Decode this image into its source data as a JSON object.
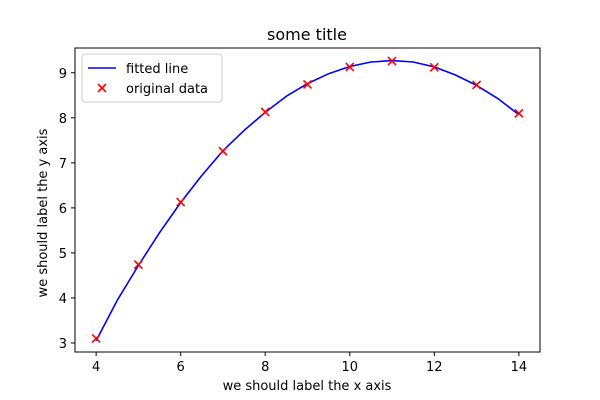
{
  "chart_data": {
    "type": "line",
    "title": "some title",
    "xlabel": "we should label the x axis",
    "ylabel": "we should label the y axis",
    "xlim": [
      3.5,
      14.5
    ],
    "ylim": [
      2.8,
      9.55
    ],
    "x_ticks": [
      4,
      6,
      8,
      10,
      12,
      14
    ],
    "y_ticks": [
      3,
      4,
      5,
      6,
      7,
      8,
      9
    ],
    "grid": false,
    "legend_position": "top-left",
    "series": [
      {
        "name": "fitted line",
        "kind": "line",
        "color": "#0000ff",
        "x": [
          4,
          4.5,
          5,
          5.5,
          6,
          6.5,
          7,
          7.5,
          8,
          8.5,
          9,
          9.5,
          10,
          10.5,
          11,
          11.5,
          12,
          12.5,
          13,
          13.5,
          14
        ],
        "y": [
          3.05,
          3.95,
          4.72,
          5.45,
          6.12,
          6.72,
          7.27,
          7.72,
          8.12,
          8.48,
          8.76,
          8.98,
          9.14,
          9.24,
          9.27,
          9.24,
          9.13,
          8.95,
          8.72,
          8.43,
          8.07
        ]
      },
      {
        "name": "original data",
        "kind": "scatter",
        "marker": "x",
        "color": "#ff0000",
        "x": [
          4,
          5,
          6,
          7,
          8,
          9,
          10,
          11,
          12,
          13,
          14
        ],
        "y": [
          3.1,
          4.74,
          6.13,
          7.26,
          8.13,
          8.74,
          9.13,
          9.26,
          9.12,
          8.73,
          8.1
        ]
      }
    ]
  }
}
